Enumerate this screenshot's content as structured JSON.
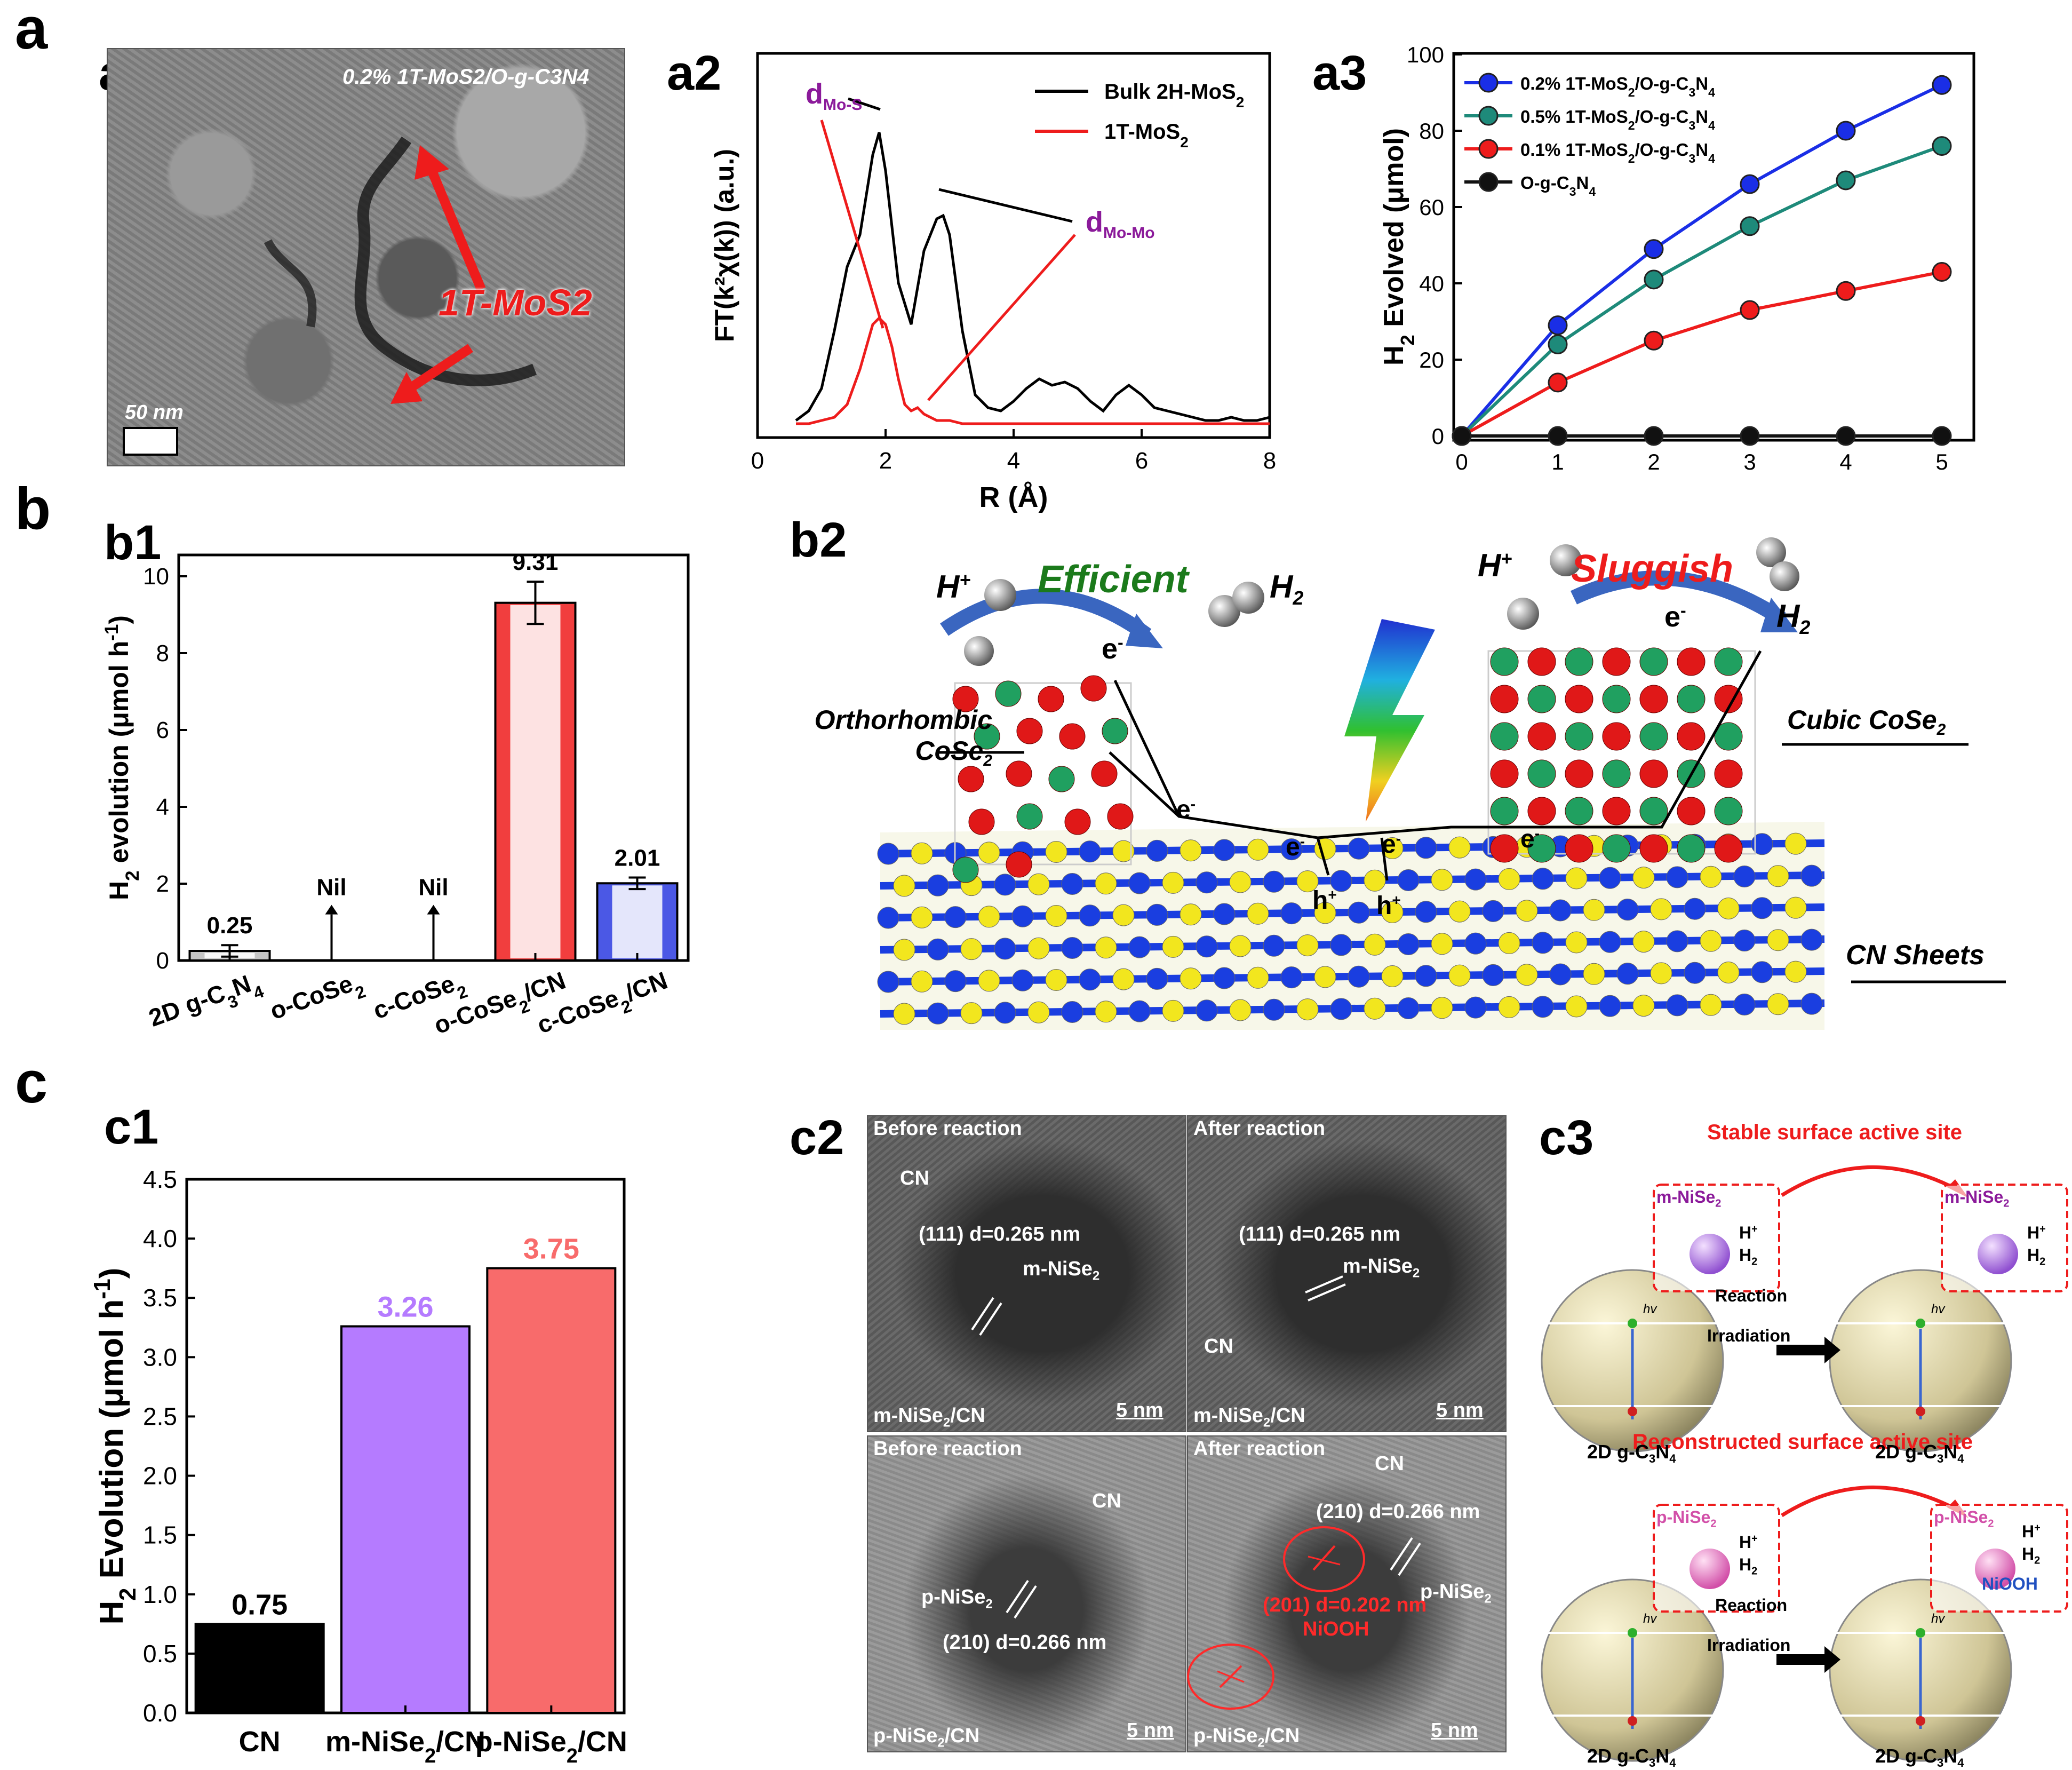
{
  "panel_labels": {
    "a": "a",
    "a1": "a1",
    "a2": "a2",
    "a3": "a3",
    "b": "b",
    "b1": "b1",
    "b2": "b2",
    "c": "c",
    "c1": "c1",
    "c2": "c2",
    "c3": "c3"
  },
  "a1": {
    "caption": "0.2% 1T-MoS2/O-g-C3N4",
    "arrow_label": "1T-MoS2",
    "scale_bar": "50 nm"
  },
  "a2": {
    "d_mos": "d",
    "d_mos_sub": "Mo-S",
    "d_momo": "d",
    "d_momo_sub": "Mo-Mo"
  },
  "b2": {
    "h_plus_left": "H",
    "efficient": "Efficient",
    "h2_left": "H",
    "e_left": "e",
    "ortho": "Orthorhombic",
    "ortho_line2": "CoSe",
    "h_plus_right": "H",
    "sluggish": "Sluggish",
    "e_right": "e",
    "h2_right": "H",
    "cubic": "Cubic CoSe",
    "cn_sheets": "CN Sheets",
    "e1": "e",
    "e2": "e",
    "e3": "e",
    "e4": "e",
    "h1": "h",
    "h2": "h"
  },
  "c2": {
    "tl_title": "Before reaction",
    "tl_cn": "CN",
    "tl_plane": "(111)  d=0.265 nm",
    "tl_phase": "m-NiSe",
    "tl_sample": "m-NiSe",
    "tl_scale": "5 nm",
    "tr_title": "After reaction",
    "tr_plane": "(111)  d=0.265 nm",
    "tr_phase": "m-NiSe",
    "tr_cn": "CN",
    "tr_sample": "m-NiSe",
    "tr_scale": "5 nm",
    "bl_title": "Before reaction",
    "bl_cn": "CN",
    "bl_phase": "p-NiSe",
    "bl_plane": "(210)  d=0.266 nm",
    "bl_sample": "p-NiSe",
    "bl_scale": "5 nm",
    "br_title": "After reaction",
    "br_cn": "CN",
    "br_plane": "(210)  d=0.266 nm",
    "br_phase": "p-NiSe",
    "br_plane2": "(201)  d=0.202 nm",
    "br_niooh": "NiOOH",
    "br_sample": "p-NiSe",
    "br_scale": "5 nm"
  },
  "c3": {
    "top_title": "Stable surface active site",
    "bottom_title": "Reconstructed surface active site",
    "m_nise": "m-NiSe",
    "p_nise": "p-NiSe",
    "h_plus": "H",
    "h2": "H",
    "hv": "hv",
    "niooh": "NiOOH",
    "reaction": "Reaction",
    "irradiation": "Irradiation",
    "g_c3n4": "2D g-C"
  },
  "chart_data": [
    {
      "id": "a2",
      "type": "line",
      "title": "",
      "xlabel": "R (Å)",
      "ylabel": "FT(k²χ(k)) (a.u.)",
      "xlim": [
        0,
        8
      ],
      "xticks": [
        0,
        2,
        4,
        6,
        8
      ],
      "series": [
        {
          "name": "Bulk 2H-MoS2",
          "legend_main": "Bulk 2H-MoS",
          "color": "#000000",
          "x": [
            0.6,
            0.8,
            1.0,
            1.2,
            1.4,
            1.6,
            1.8,
            1.9,
            2.0,
            2.2,
            2.4,
            2.6,
            2.8,
            2.9,
            3.0,
            3.2,
            3.4,
            3.6,
            3.8,
            4.0,
            4.2,
            4.4,
            4.6,
            4.8,
            5.0,
            5.2,
            5.4,
            5.6,
            5.8,
            6.0,
            6.2,
            6.4,
            6.6,
            6.8,
            7.0,
            7.2,
            7.4,
            7.6,
            7.8,
            8.0
          ],
          "y": [
            0.02,
            0.05,
            0.12,
            0.3,
            0.5,
            0.6,
            0.85,
            0.92,
            0.8,
            0.45,
            0.32,
            0.55,
            0.65,
            0.66,
            0.6,
            0.3,
            0.1,
            0.06,
            0.05,
            0.08,
            0.12,
            0.15,
            0.13,
            0.14,
            0.12,
            0.08,
            0.05,
            0.1,
            0.13,
            0.1,
            0.06,
            0.05,
            0.04,
            0.03,
            0.02,
            0.02,
            0.03,
            0.02,
            0.02,
            0.03
          ]
        },
        {
          "name": "1T-MoS2",
          "legend_main": "1T-MoS",
          "color": "#ee1c1c",
          "x": [
            0.6,
            0.8,
            1.0,
            1.2,
            1.4,
            1.6,
            1.8,
            1.9,
            2.0,
            2.1,
            2.2,
            2.3,
            2.4,
            2.5,
            2.6,
            2.8,
            3.0,
            3.2,
            3.6,
            4.0,
            5.0,
            6.0,
            7.0,
            8.0
          ],
          "y": [
            0.01,
            0.01,
            0.02,
            0.03,
            0.07,
            0.18,
            0.32,
            0.34,
            0.32,
            0.25,
            0.15,
            0.07,
            0.05,
            0.06,
            0.04,
            0.02,
            0.02,
            0.01,
            0.01,
            0.01,
            0.01,
            0.01,
            0.01,
            0.01
          ]
        }
      ]
    },
    {
      "id": "a3",
      "type": "line",
      "title": "",
      "xlabel": "",
      "ylabel": "H2 Evolved (μmol)",
      "ylabel_main": "H",
      "ylabel_rest": "Evolved (μmol)",
      "xlim": [
        0,
        5
      ],
      "ylim": [
        0,
        100
      ],
      "xticks": [
        0,
        1,
        2,
        3,
        4,
        5
      ],
      "yticks": [
        0,
        20,
        40,
        60,
        80,
        100
      ],
      "series": [
        {
          "name": "0.2% 1T-MoS2/O-g-C3N4",
          "color": "#1a2ee6",
          "x": [
            0,
            1,
            2,
            3,
            4,
            5
          ],
          "y": [
            0,
            29,
            49,
            66,
            80,
            92
          ]
        },
        {
          "name": "0.5% 1T-MoS2/O-g-C3N4",
          "color": "#1e8a7a",
          "x": [
            0,
            1,
            2,
            3,
            4,
            5
          ],
          "y": [
            0,
            24,
            41,
            55,
            67,
            76
          ]
        },
        {
          "name": "0.1% 1T-MoS2/O-g-C3N4",
          "color": "#ee1c1c",
          "x": [
            0,
            1,
            2,
            3,
            4,
            5
          ],
          "y": [
            0,
            14,
            25,
            33,
            38,
            43
          ]
        },
        {
          "name": "O-g-C3N4",
          "color": "#111111",
          "x": [
            0,
            1,
            2,
            3,
            4,
            5
          ],
          "y": [
            0,
            0,
            0,
            0,
            0,
            0
          ]
        }
      ]
    },
    {
      "id": "b1",
      "type": "bar",
      "title": "",
      "ylabel": "H2 evolution (μmol h-1)",
      "ylim": [
        0,
        10
      ],
      "yticks": [
        0,
        2,
        4,
        6,
        8,
        10
      ],
      "categories": [
        "2D g-C3N4",
        "o-CoSe2",
        "c-CoSe2",
        "o-CoSe2/CN",
        "c-CoSe2/CN"
      ],
      "values": [
        0.25,
        0,
        0,
        9.31,
        2.01
      ],
      "errors": [
        0.15,
        0,
        0,
        0.55,
        0.15
      ],
      "data_labels": [
        "0.25",
        "Nil",
        "Nil",
        "9.31",
        "2.01"
      ],
      "colors": [
        "#bbbbbb",
        "#ffffff",
        "#ffffff",
        "#ee1c1c",
        "#2b3be0"
      ]
    },
    {
      "id": "c1",
      "type": "bar",
      "title": "",
      "ylabel": "H2 Evolution (μmol h-1)",
      "ylim": [
        0,
        4.5
      ],
      "yticks": [
        0.0,
        0.5,
        1.0,
        1.5,
        2.0,
        2.5,
        3.0,
        3.5,
        4.0,
        4.5
      ],
      "categories": [
        "CN",
        "m-NiSe2/CN",
        "p-NiSe2/CN"
      ],
      "values": [
        0.75,
        3.26,
        3.75
      ],
      "data_labels": [
        "0.75",
        "3.26",
        "3.75"
      ],
      "colors": [
        "#000000",
        "#b57bff",
        "#f86b6b"
      ],
      "label_colors": [
        "#000000",
        "#b57bff",
        "#f86b6b"
      ]
    }
  ]
}
